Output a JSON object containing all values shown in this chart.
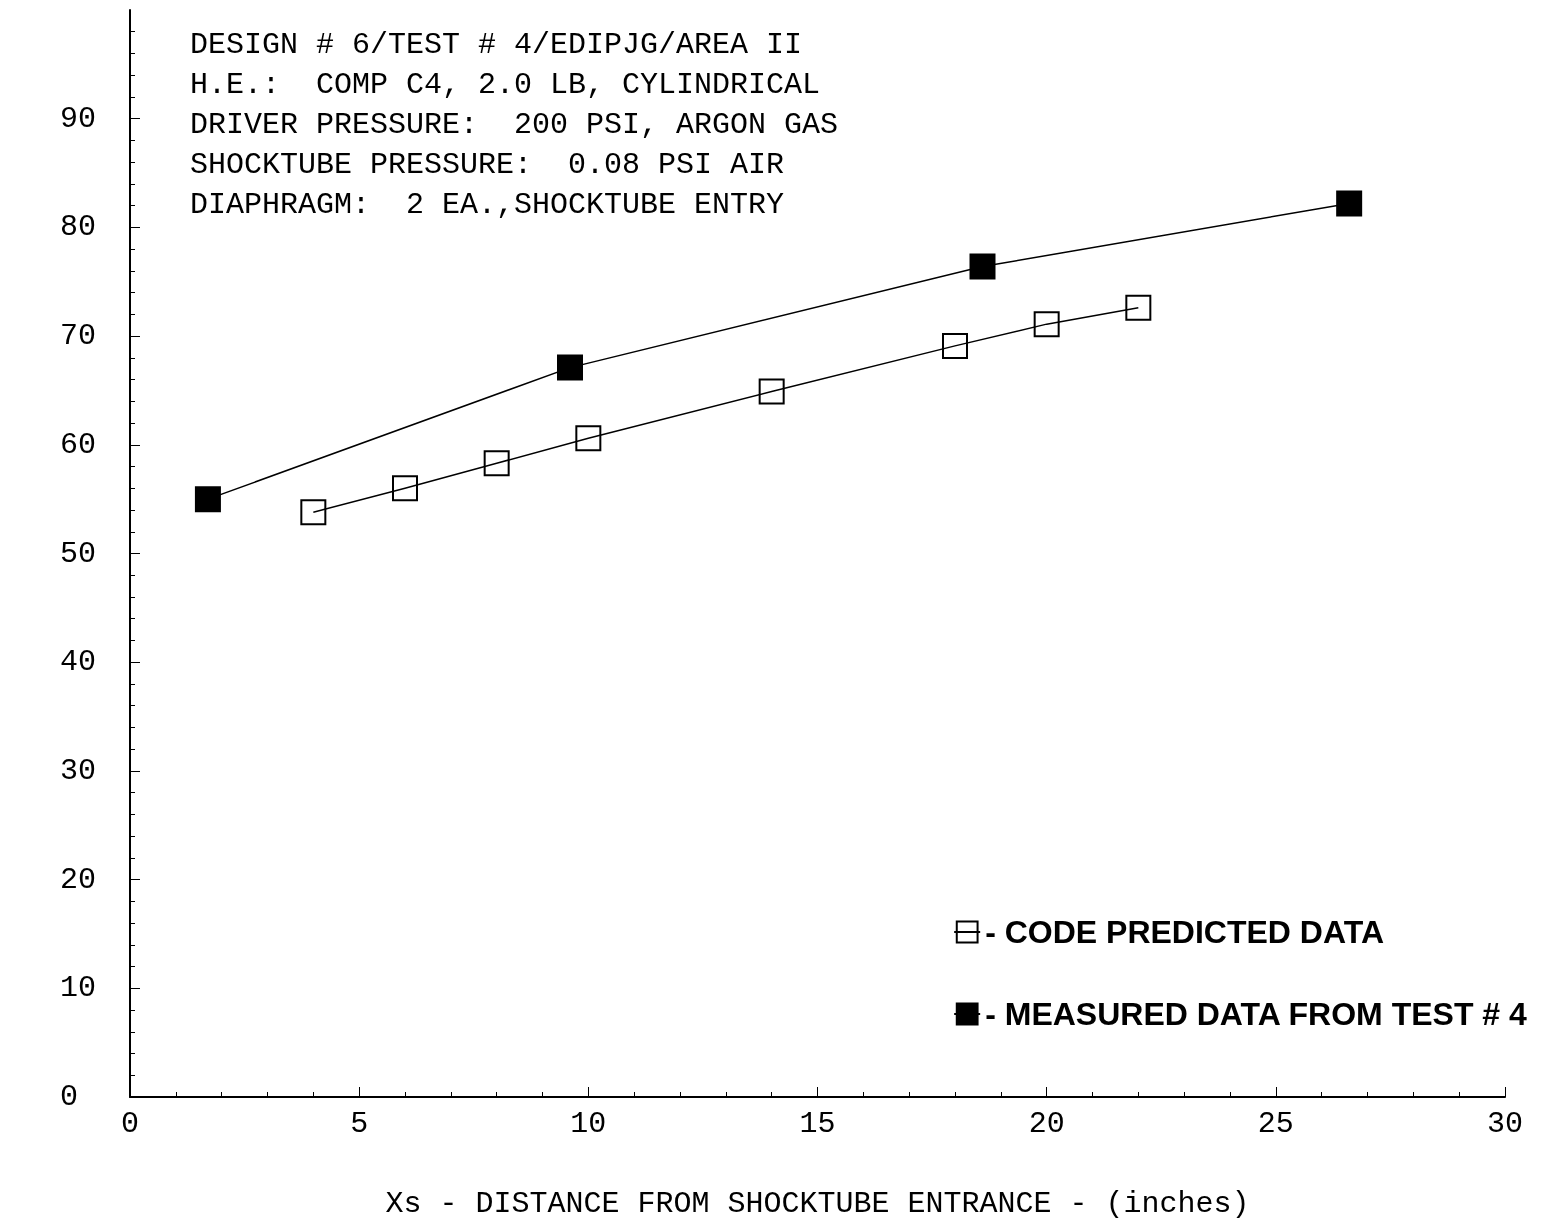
{
  "chart_data": {
    "type": "line",
    "xlabel": "Xs - DISTANCE FROM SHOCKTUBE ENTRANCE - (inches)",
    "annotations": [
      "DESIGN # 6/TEST # 4/EDIPJG/AREA II",
      "H.E.:  COMP C4, 2.0 LB, CYLINDRICAL",
      "DRIVER PRESSURE:  200 PSI, ARGON GAS",
      "SHOCKTUBE PRESSURE:  0.08 PSI AIR",
      "DIAPHRAGM:  2 EA.,SHOCKTUBE ENTRY"
    ],
    "series": [
      {
        "name": "- CODE PREDICTED DATA",
        "color": "#000000",
        "marker": "square",
        "x": [
          4,
          6,
          8,
          10,
          14,
          18,
          20,
          22
        ],
        "values": [
          53.8,
          56.0,
          58.3,
          60.6,
          64.9,
          69.1,
          71.1,
          72.6
        ]
      },
      {
        "name": "- MEASURED DATA FROM TEST # 4",
        "color": "#000000",
        "marker": "square",
        "x": [
          1.7,
          9.6,
          18.6,
          26.6
        ],
        "values": [
          55.0,
          67.1,
          76.4,
          82.2
        ]
      }
    ],
    "xlim": [
      0,
      30
    ],
    "xticks": [
      0,
      5,
      10,
      15,
      20,
      25,
      30
    ],
    "ylim": [
      0,
      100
    ],
    "yticks": [
      0,
      10,
      20,
      30,
      40,
      50,
      60,
      70,
      80,
      90
    ],
    "grid": false,
    "legend": "bottom right",
    "line_style": "solid"
  }
}
